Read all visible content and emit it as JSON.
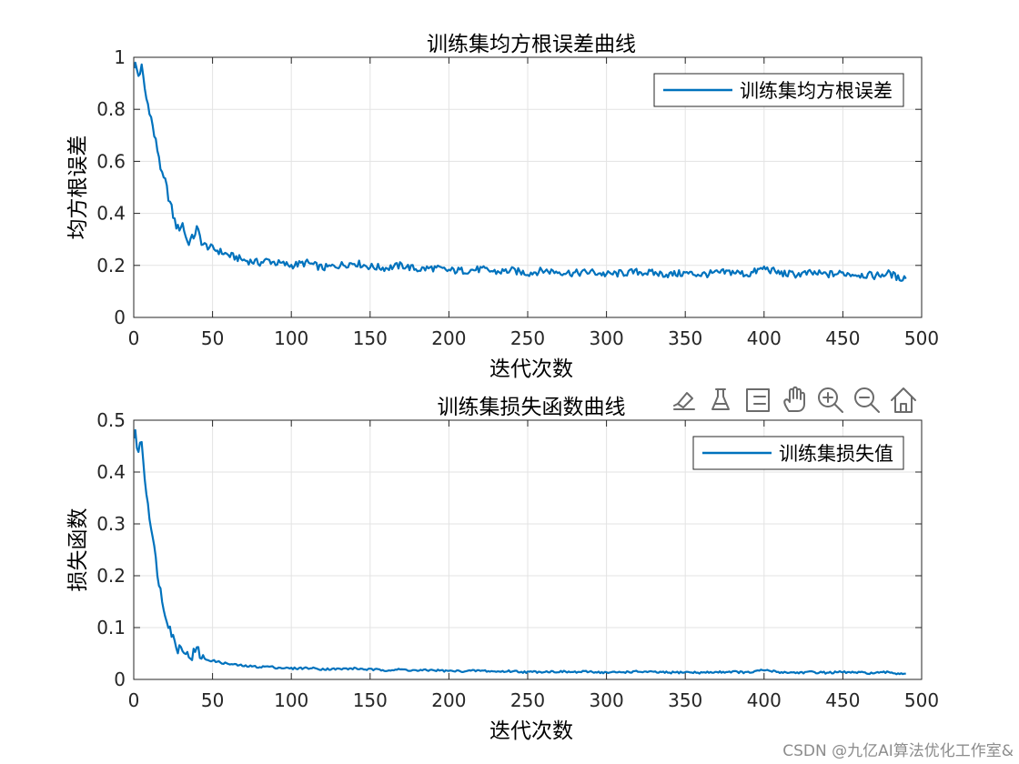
{
  "chart_data": [
    {
      "type": "line",
      "title": "训练集均方根误差曲线",
      "xlabel": "迭代次数",
      "ylabel": "均方根误差",
      "xlim": [
        0,
        500
      ],
      "ylim": [
        0,
        1
      ],
      "xticks": [
        0,
        50,
        100,
        150,
        200,
        250,
        300,
        350,
        400,
        450,
        500
      ],
      "xtick_labels": [
        "0",
        "50",
        "100",
        "150",
        "200",
        "250",
        "300",
        "350",
        "400",
        "450",
        "500"
      ],
      "yticks": [
        0,
        0.2,
        0.4,
        0.6,
        0.8,
        1
      ],
      "ytick_labels": [
        "0",
        "0.2",
        "0.4",
        "0.6",
        "0.8",
        "1"
      ],
      "grid": true,
      "legend_position": "top-right",
      "series": [
        {
          "name": "训练集均方根误差",
          "color": "#0072BD",
          "x": [
            1,
            3,
            5,
            8,
            10,
            13,
            16,
            18,
            20,
            23,
            26,
            28,
            31,
            34,
            37,
            40,
            44,
            48,
            52,
            56,
            60,
            65,
            70,
            75,
            80,
            85,
            90,
            95,
            100,
            110,
            120,
            130,
            140,
            150,
            160,
            170,
            180,
            190,
            200,
            210,
            220,
            230,
            240,
            250,
            260,
            270,
            280,
            290,
            300,
            310,
            320,
            330,
            340,
            350,
            360,
            370,
            380,
            390,
            400,
            410,
            420,
            430,
            440,
            450,
            460,
            470,
            480,
            485,
            490
          ],
          "y": [
            0.97,
            0.93,
            0.96,
            0.84,
            0.8,
            0.7,
            0.62,
            0.54,
            0.52,
            0.44,
            0.37,
            0.34,
            0.36,
            0.29,
            0.3,
            0.34,
            0.28,
            0.27,
            0.26,
            0.25,
            0.24,
            0.23,
            0.22,
            0.215,
            0.21,
            0.22,
            0.21,
            0.205,
            0.2,
            0.21,
            0.19,
            0.2,
            0.21,
            0.195,
            0.19,
            0.2,
            0.185,
            0.19,
            0.18,
            0.18,
            0.185,
            0.175,
            0.18,
            0.17,
            0.18,
            0.175,
            0.17,
            0.175,
            0.165,
            0.17,
            0.175,
            0.17,
            0.165,
            0.17,
            0.165,
            0.17,
            0.175,
            0.165,
            0.19,
            0.17,
            0.165,
            0.17,
            0.165,
            0.17,
            0.165,
            0.16,
            0.17,
            0.15,
            0.155
          ]
        }
      ]
    },
    {
      "type": "line",
      "title": "训练集损失函数曲线",
      "xlabel": "迭代次数",
      "ylabel": "损失函数",
      "xlim": [
        0,
        500
      ],
      "ylim": [
        0,
        0.5
      ],
      "xticks": [
        0,
        50,
        100,
        150,
        200,
        250,
        300,
        350,
        400,
        450,
        500
      ],
      "xtick_labels": [
        "0",
        "50",
        "100",
        "150",
        "200",
        "250",
        "300",
        "350",
        "400",
        "450",
        "500"
      ],
      "yticks": [
        0,
        0.1,
        0.2,
        0.3,
        0.4,
        0.5
      ],
      "ytick_labels": [
        "0",
        "0.1",
        "0.2",
        "0.3",
        "0.4",
        "0.5"
      ],
      "grid": true,
      "legend_position": "top-right",
      "series": [
        {
          "name": "训练集损失值",
          "color": "#0072BD",
          "x": [
            1,
            3,
            5,
            8,
            10,
            13,
            16,
            18,
            20,
            23,
            26,
            28,
            31,
            34,
            37,
            40,
            44,
            48,
            52,
            56,
            60,
            65,
            70,
            75,
            80,
            85,
            90,
            95,
            100,
            110,
            120,
            130,
            140,
            150,
            160,
            170,
            180,
            190,
            200,
            210,
            220,
            230,
            240,
            250,
            260,
            270,
            280,
            290,
            300,
            310,
            320,
            330,
            340,
            350,
            360,
            370,
            380,
            390,
            400,
            410,
            420,
            430,
            440,
            450,
            460,
            470,
            480,
            485,
            490
          ],
          "y": [
            0.47,
            0.44,
            0.46,
            0.36,
            0.32,
            0.25,
            0.19,
            0.15,
            0.13,
            0.1,
            0.07,
            0.06,
            0.065,
            0.045,
            0.046,
            0.058,
            0.04,
            0.037,
            0.035,
            0.032,
            0.03,
            0.028,
            0.026,
            0.025,
            0.024,
            0.025,
            0.023,
            0.022,
            0.021,
            0.022,
            0.02,
            0.02,
            0.021,
            0.019,
            0.018,
            0.019,
            0.017,
            0.018,
            0.016,
            0.016,
            0.017,
            0.015,
            0.016,
            0.014,
            0.015,
            0.015,
            0.014,
            0.015,
            0.013,
            0.014,
            0.015,
            0.014,
            0.013,
            0.014,
            0.013,
            0.014,
            0.015,
            0.013,
            0.018,
            0.014,
            0.013,
            0.014,
            0.013,
            0.014,
            0.013,
            0.012,
            0.014,
            0.011,
            0.012
          ]
        }
      ]
    }
  ],
  "toolbar": {
    "icons": [
      "brush-icon",
      "export-icon",
      "legend-toggle-icon",
      "pan-hand-icon",
      "zoom-in-icon",
      "zoom-out-icon",
      "home-icon"
    ]
  },
  "watermark": "CSDN @九亿AI算法优化工作室&"
}
